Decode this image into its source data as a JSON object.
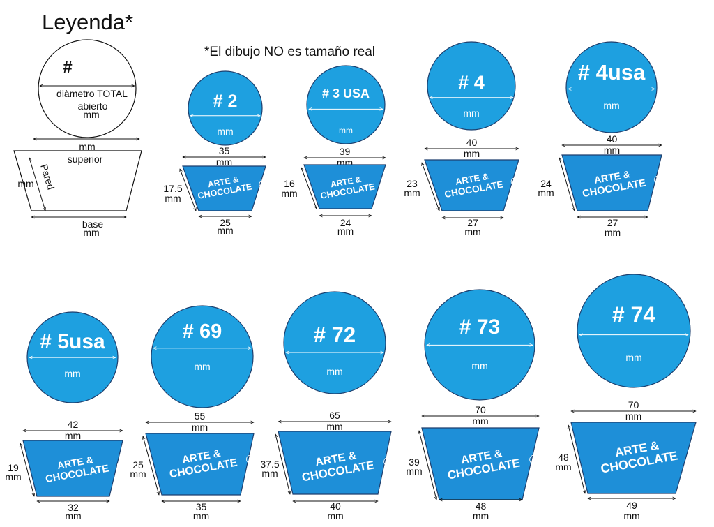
{
  "legend": {
    "title": "Leyenda*",
    "note": "*El dibujo NO es tamaño real",
    "circle_symbol": "#",
    "circle_label": "diàmetro TOTAL",
    "circle_label2": "abierto",
    "circle_unit": "mm",
    "top_unit": "mm",
    "top_label": "superior",
    "wall_unit": "mm",
    "wall_label": "Pared",
    "base_label": "base",
    "base_unit": "mm"
  },
  "colors": {
    "fill": "#1ea0e0",
    "cup_fill": "#1e8fd8",
    "stroke": "#1d3f6e",
    "text_dark": "#111111",
    "text_light": "#ffffff"
  },
  "brand": {
    "line1": "ARTE &",
    "line2": "CHOCOLATE",
    "mark": "R"
  },
  "unit": "mm",
  "sizes": [
    {
      "name": "# 2",
      "diameter_unit": "mm",
      "top": "35",
      "height": "17.5",
      "base": "25"
    },
    {
      "name": "# 3 USA",
      "diameter_unit": "mm",
      "top": "39",
      "height": "16",
      "base": "24"
    },
    {
      "name": "# 4",
      "diameter_unit": "mm",
      "top": "40",
      "height": "23",
      "base": "27"
    },
    {
      "name": "# 4usa",
      "diameter_unit": "mm",
      "top": "40",
      "height": "24",
      "base": "27"
    },
    {
      "name": "# 5usa",
      "diameter_unit": "mm",
      "top": "42",
      "height": "19",
      "base": "32"
    },
    {
      "name": "# 69",
      "diameter_unit": "mm",
      "top": "55",
      "height": "25",
      "base": "35"
    },
    {
      "name": "# 72",
      "diameter_unit": "mm",
      "top": "65",
      "height": "37.5",
      "base": "40"
    },
    {
      "name": "# 73",
      "diameter_unit": "mm",
      "top": "70",
      "height": "39",
      "base": "48"
    },
    {
      "name": "# 74",
      "diameter_unit": "mm",
      "top": "70",
      "height": "48",
      "base": "49"
    }
  ]
}
